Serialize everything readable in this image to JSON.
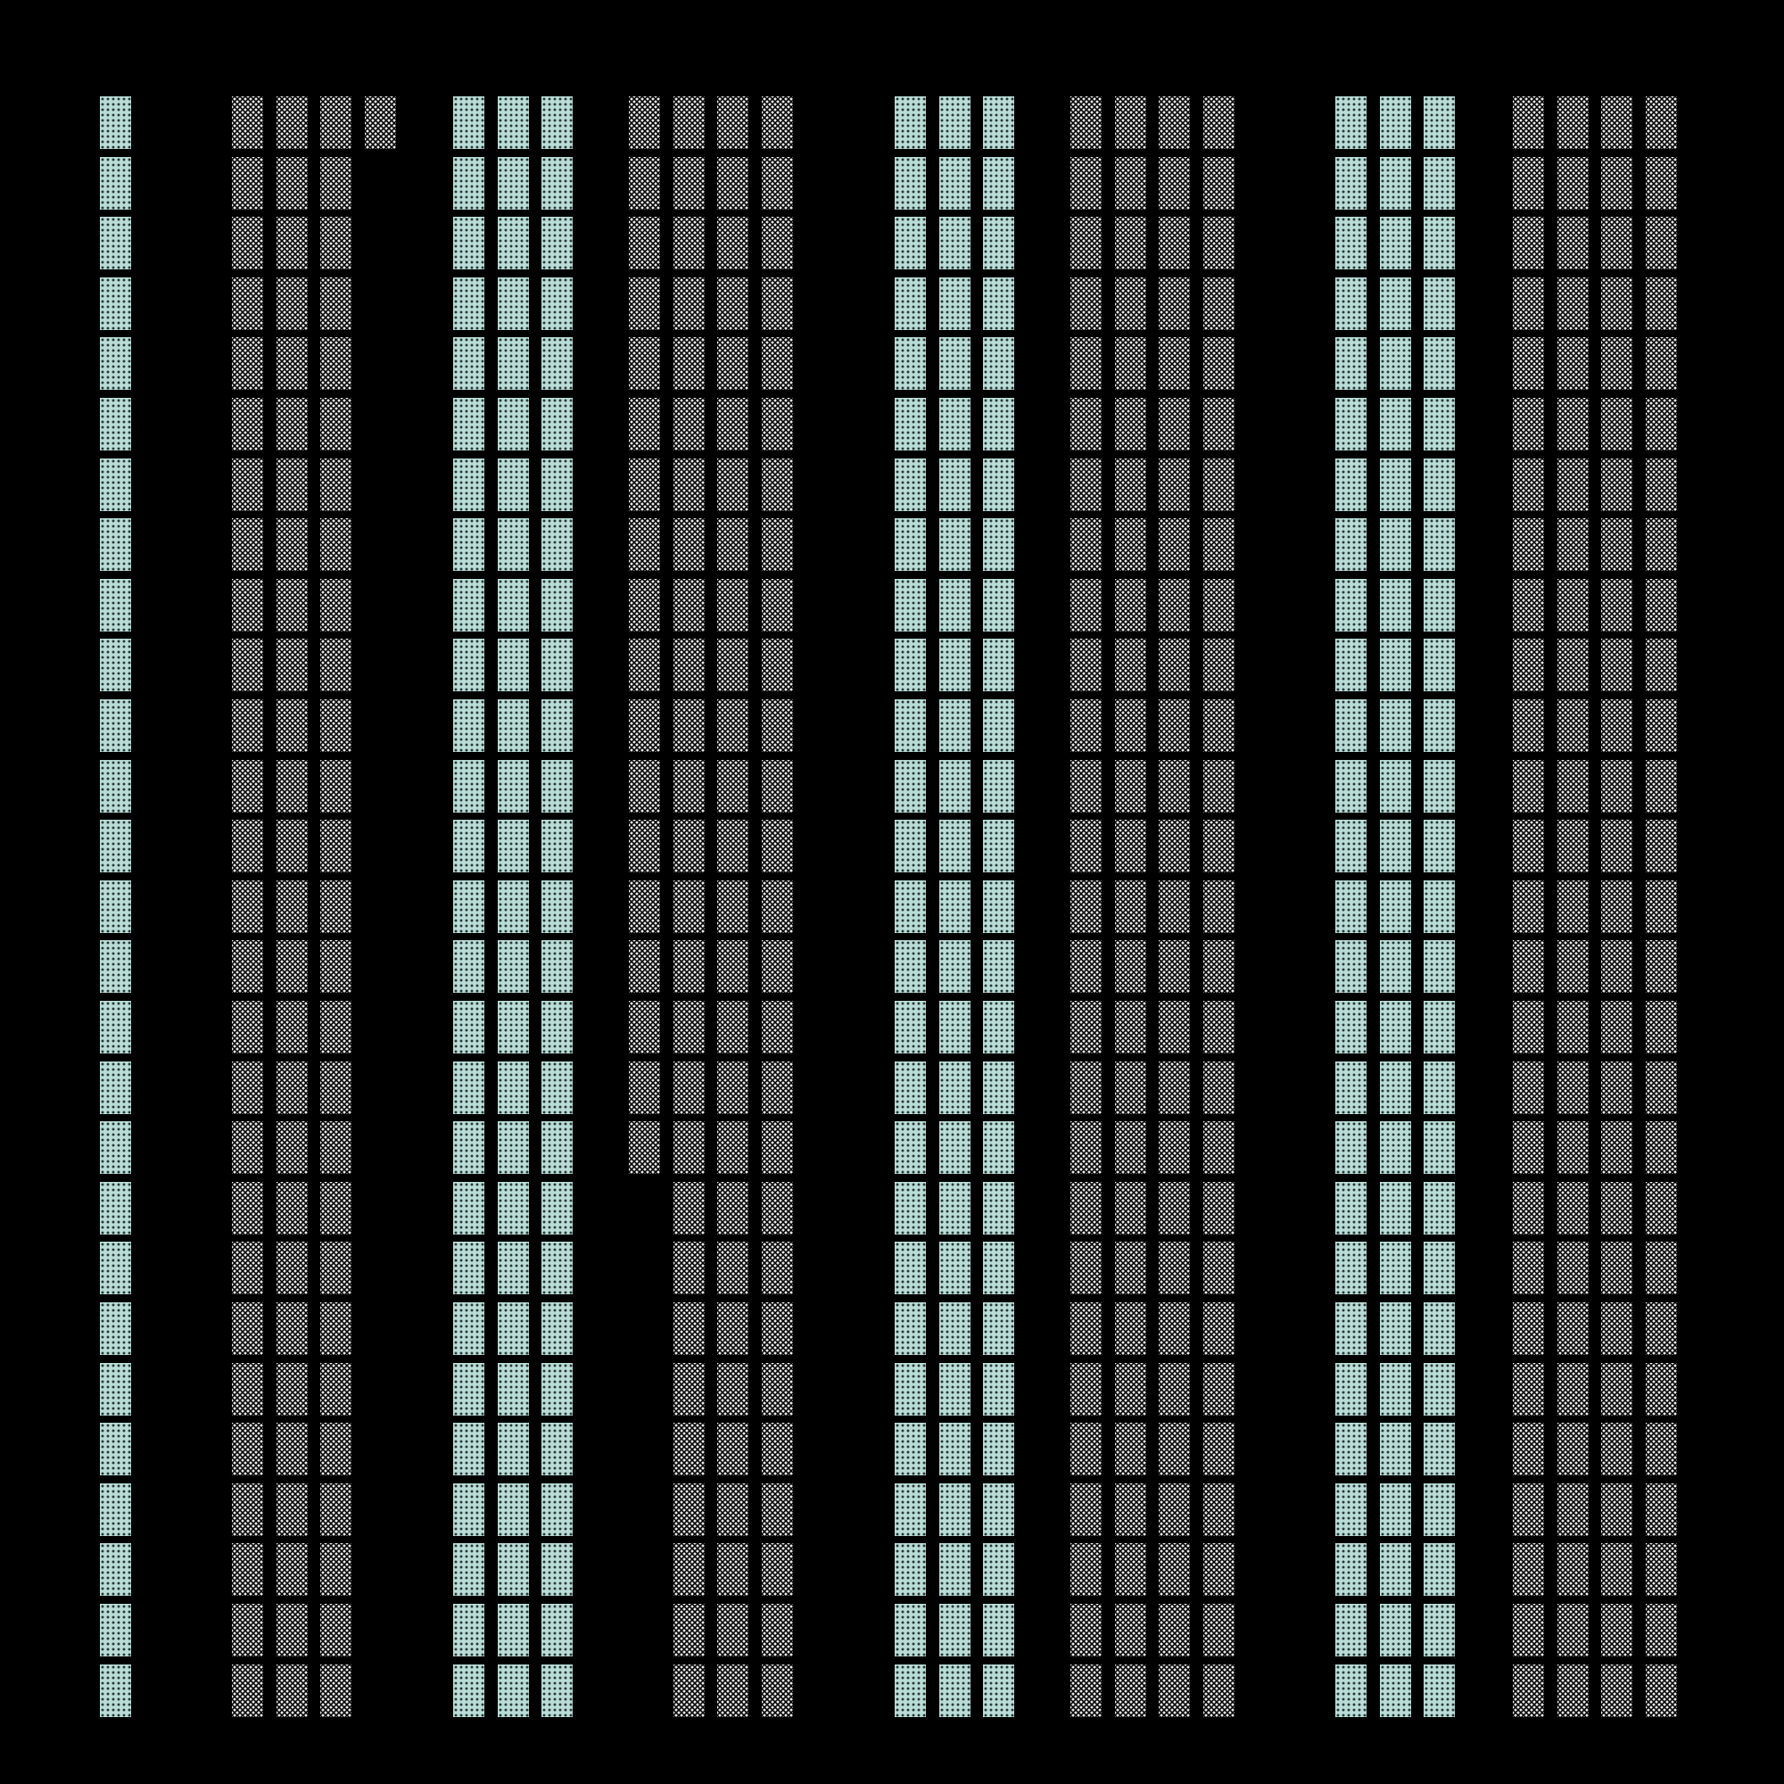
{
  "chart_data": {
    "type": "waffle",
    "title": "",
    "rows_per_column": 27,
    "groups": [
      {
        "value": 27,
        "style": "light"
      },
      {
        "value": 82,
        "style": "dark"
      },
      {
        "value": 81,
        "style": "light"
      },
      {
        "value": 99,
        "style": "dark"
      },
      {
        "value": 81,
        "style": "light"
      },
      {
        "value": 108,
        "style": "dark"
      },
      {
        "value": 81,
        "style": "light"
      },
      {
        "value": 108,
        "style": "dark"
      }
    ],
    "colors": {
      "light": "#b9dcd6",
      "dark_dots": "#e8e8e8",
      "background": "#000000"
    }
  }
}
